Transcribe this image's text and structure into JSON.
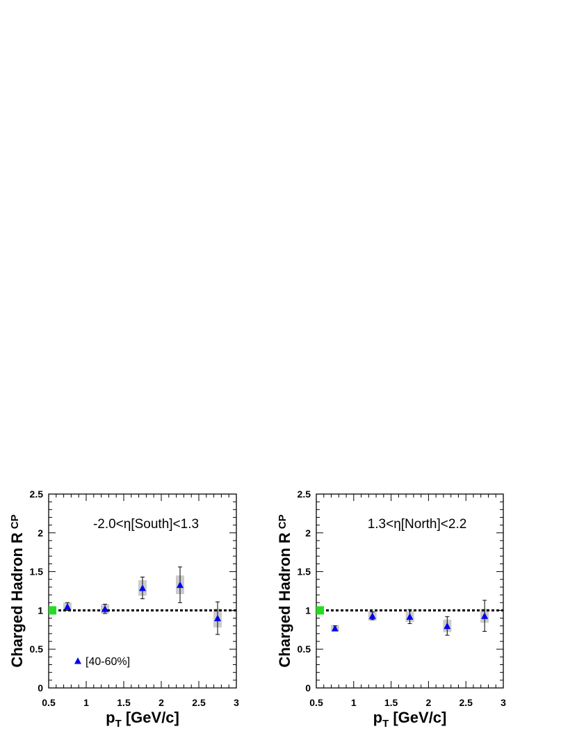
{
  "chart_data": [
    {
      "type": "scatter",
      "title": "",
      "annotation": "-2.0<η[South]<1.3",
      "xlabel": "p",
      "xlabel_sub": "T",
      "xlabel_rest": " [GeV/c]",
      "ylabel": "Charged Hadron R",
      "ylabel_sub": "CP",
      "xlim": [
        0.5,
        3.0
      ],
      "ylim": [
        0.0,
        2.5
      ],
      "xticks": [
        "0.5",
        "1",
        "1.5",
        "2",
        "2.5",
        "3"
      ],
      "yticks": [
        "0",
        "0.5",
        "1",
        "1.5",
        "2",
        "2.5"
      ],
      "reference_line": 1.0,
      "normalization_box": {
        "value": 1.0,
        "color": "#22dd22"
      },
      "legend": {
        "label": "[40-60%]",
        "placement": "bottom-left"
      },
      "series": [
        {
          "name": "[40-60%]",
          "color": "#0000ee",
          "marker": "triangle",
          "x": [
            0.75,
            1.25,
            1.75,
            2.25,
            2.75
          ],
          "y": [
            1.05,
            1.02,
            1.29,
            1.33,
            0.9
          ],
          "stat_err": [
            0.05,
            0.06,
            0.14,
            0.23,
            0.21
          ],
          "sys_err": [
            0.05,
            0.06,
            0.1,
            0.12,
            0.12
          ]
        }
      ]
    },
    {
      "type": "scatter",
      "title": "",
      "annotation": "1.3<η[North]<2.2",
      "xlabel": "p",
      "xlabel_sub": "T",
      "xlabel_rest": " [GeV/c]",
      "ylabel": "Charged Hadron R",
      "ylabel_sub": "CP",
      "xlim": [
        0.5,
        3.0
      ],
      "ylim": [
        0.0,
        2.5
      ],
      "xticks": [
        "0.5",
        "1",
        "1.5",
        "2",
        "2.5",
        "3"
      ],
      "yticks": [
        "0",
        "0.5",
        "1",
        "1.5",
        "2",
        "2.5"
      ],
      "reference_line": 1.0,
      "normalization_box": {
        "value": 1.0,
        "color": "#22dd22"
      },
      "series": [
        {
          "color": "#0000ee",
          "marker": "triangle",
          "x": [
            0.75,
            1.25,
            1.75,
            2.25,
            2.75
          ],
          "y": [
            0.77,
            0.93,
            0.92,
            0.8,
            0.93
          ],
          "stat_err": [
            0.03,
            0.05,
            0.09,
            0.12,
            0.2
          ],
          "sys_err": [
            0.04,
            0.06,
            0.07,
            0.08,
            0.09
          ]
        }
      ]
    }
  ]
}
